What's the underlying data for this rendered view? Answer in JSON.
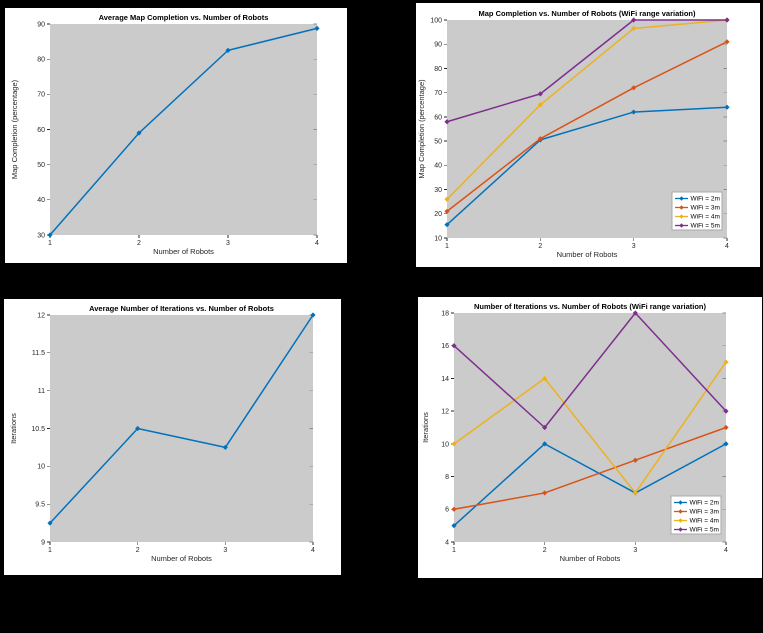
{
  "figure": {
    "background": "#000000",
    "panel_background": "#ffffff",
    "plot_background": "#cbcbcb",
    "axis_text_color": "#262626",
    "title_color": "#000000"
  },
  "palette": {
    "blue": "#0072BD",
    "orange": "#D95319",
    "yellow": "#EDB120",
    "purple": "#7E2F8E"
  },
  "chart_data": [
    {
      "id": "average-map-completion",
      "type": "line",
      "title": "Average Map Completion vs. Number of Robots",
      "xlabel": "Number of Robots",
      "ylabel": "Map Completion (percentage)",
      "x": [
        1,
        2,
        3,
        4
      ],
      "xlim": [
        1,
        4
      ],
      "ylim": [
        30,
        90
      ],
      "xticks": [
        1,
        2,
        3,
        4
      ],
      "yticks": [
        30,
        40,
        50,
        60,
        70,
        80,
        90
      ],
      "grid": false,
      "legend": null,
      "series": [
        {
          "name": "Average",
          "color": "#0072BD",
          "values": [
            30,
            59,
            82.5,
            88.75
          ]
        }
      ]
    },
    {
      "id": "map-completion-wifi-variation",
      "type": "line",
      "title": "Map Completion vs. Number of Robots (WiFi range variation)",
      "xlabel": "Number of Robots",
      "ylabel": "Map Completion (percentage)",
      "x": [
        1,
        2,
        3,
        4
      ],
      "xlim": [
        1,
        4
      ],
      "ylim": [
        10,
        100
      ],
      "xticks": [
        1,
        2,
        3,
        4
      ],
      "yticks": [
        10,
        20,
        30,
        40,
        50,
        60,
        70,
        80,
        90,
        100
      ],
      "grid": false,
      "legend": {
        "position": "bottom-right",
        "labels": [
          "WiFi = 2m",
          "WiFi = 3m",
          "WiFi = 4m",
          "WiFi = 5m"
        ]
      },
      "series": [
        {
          "name": "WiFi = 2m",
          "color": "#0072BD",
          "values": [
            15.5,
            50.5,
            62,
            64
          ]
        },
        {
          "name": "WiFi = 3m",
          "color": "#D95319",
          "values": [
            21,
            51,
            72,
            91
          ]
        },
        {
          "name": "WiFi = 4m",
          "color": "#EDB120",
          "values": [
            26,
            65,
            96.5,
            100
          ]
        },
        {
          "name": "WiFi = 5m",
          "color": "#7E2F8E",
          "values": [
            58,
            69.5,
            100,
            100
          ]
        }
      ]
    },
    {
      "id": "average-iterations",
      "type": "line",
      "title": "Average Number of Iterations vs. Number of Robots",
      "xlabel": "Number of Robots",
      "ylabel": "Iterations",
      "x": [
        1,
        2,
        3,
        4
      ],
      "xlim": [
        1,
        4
      ],
      "ylim": [
        9,
        12
      ],
      "xticks": [
        1,
        2,
        3,
        4
      ],
      "yticks": [
        9,
        9.5,
        10,
        10.5,
        11,
        11.5,
        12
      ],
      "grid": false,
      "legend": null,
      "series": [
        {
          "name": "Average",
          "color": "#0072BD",
          "values": [
            9.25,
            10.5,
            10.25,
            12
          ]
        }
      ]
    },
    {
      "id": "iterations-wifi-variation",
      "type": "line",
      "title": "Number of Iterations vs. Number of Robots (WiFi range variation)",
      "xlabel": "Number of Robots",
      "ylabel": "Iterations",
      "x": [
        1,
        2,
        3,
        4
      ],
      "xlim": [
        1,
        4
      ],
      "ylim": [
        4,
        18
      ],
      "xticks": [
        1,
        2,
        3,
        4
      ],
      "yticks": [
        4,
        6,
        8,
        10,
        12,
        14,
        16,
        18
      ],
      "grid": false,
      "legend": {
        "position": "bottom-right",
        "labels": [
          "WiFi = 2m",
          "WiFi = 3m",
          "WiFi = 4m",
          "WiFi = 5m"
        ]
      },
      "series": [
        {
          "name": "WiFi = 2m",
          "color": "#0072BD",
          "values": [
            5,
            10,
            7,
            10
          ]
        },
        {
          "name": "WiFi = 3m",
          "color": "#D95319",
          "values": [
            6,
            7,
            9,
            11
          ]
        },
        {
          "name": "WiFi = 4m",
          "color": "#EDB120",
          "values": [
            10,
            14,
            7,
            15
          ]
        },
        {
          "name": "WiFi = 5m",
          "color": "#7E2F8E",
          "values": [
            16,
            11,
            18,
            12
          ]
        }
      ]
    }
  ]
}
